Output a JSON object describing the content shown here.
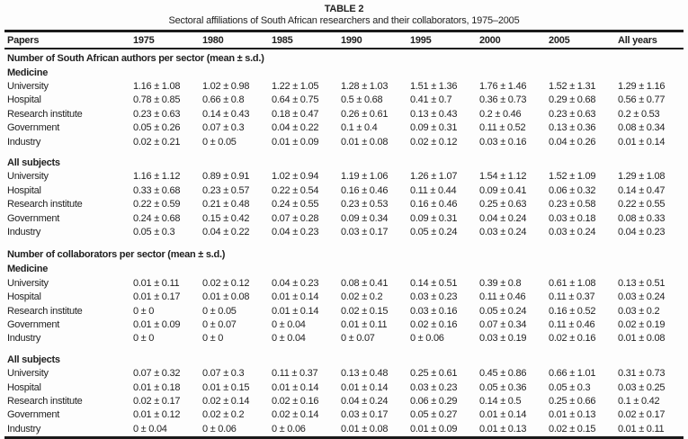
{
  "page": {
    "title": "TABLE 2",
    "subtitle": "Sectoral affiliations of South African researchers and their collaborators, 1975–2005"
  },
  "table": {
    "columns": [
      "Papers",
      "1975",
      "1980",
      "1985",
      "1990",
      "1995",
      "2000",
      "2005",
      "All years"
    ],
    "sections": [
      {
        "header": "Number of South African authors per sector (mean ± s.d.)",
        "groups": [
          {
            "name": "Medicine",
            "rows": [
              {
                "label": "University",
                "values": [
                  "1.16 ± 1.08",
                  "1.02 ± 0.98",
                  "1.22 ± 1.05",
                  "1.28 ± 1.03",
                  "1.51 ± 1.36",
                  "1.76 ± 1.46",
                  "1.52 ± 1.31",
                  "1.29 ± 1.16"
                ]
              },
              {
                "label": "Hospital",
                "values": [
                  "0.78 ± 0.85",
                  "0.66 ± 0.8",
                  "0.64 ± 0.75",
                  "0.5 ± 0.68",
                  "0.41 ± 0.7",
                  "0.36 ± 0.73",
                  "0.29 ± 0.68",
                  "0.56 ± 0.77"
                ]
              },
              {
                "label": "Research institute",
                "values": [
                  "0.23 ± 0.63",
                  "0.14 ± 0.43",
                  "0.18 ± 0.47",
                  "0.26 ± 0.61",
                  "0.13 ± 0.43",
                  "0.2 ± 0.46",
                  "0.23 ± 0.63",
                  "0.2 ± 0.53"
                ]
              },
              {
                "label": "Government",
                "values": [
                  "0.05 ± 0.26",
                  "0.07 ± 0.3",
                  "0.04 ± 0.22",
                  "0.1 ± 0.4",
                  "0.09 ± 0.31",
                  "0.11 ± 0.52",
                  "0.13 ± 0.36",
                  "0.08 ± 0.34"
                ]
              },
              {
                "label": "Industry",
                "values": [
                  "0.02 ± 0.21",
                  "0 ± 0.05",
                  "0.01 ± 0.09",
                  "0.01 ± 0.08",
                  "0.02 ± 0.12",
                  "0.03 ± 0.16",
                  "0.04 ± 0.26",
                  "0.01 ± 0.14"
                ]
              }
            ]
          },
          {
            "name": "All subjects",
            "rows": [
              {
                "label": "University",
                "values": [
                  "1.16 ± 1.12",
                  "0.89 ± 0.91",
                  "1.02 ± 0.94",
                  "1.19 ± 1.06",
                  "1.26 ± 1.07",
                  "1.54 ± 1.12",
                  "1.52 ± 1.09",
                  "1.29 ± 1.08"
                ]
              },
              {
                "label": "Hospital",
                "values": [
                  "0.33 ± 0.68",
                  "0.23 ± 0.57",
                  "0.22 ± 0.54",
                  "0.16 ± 0.46",
                  "0.11 ± 0.44",
                  "0.09 ± 0.41",
                  "0.06 ± 0.32",
                  "0.14 ± 0.47"
                ]
              },
              {
                "label": "Research institute",
                "values": [
                  "0.22 ± 0.59",
                  "0.21 ± 0.48",
                  "0.24 ± 0.55",
                  "0.23 ± 0.53",
                  "0.16 ± 0.46",
                  "0.25 ± 0.63",
                  "0.23 ± 0.58",
                  "0.22 ± 0.55"
                ]
              },
              {
                "label": "Government",
                "values": [
                  "0.24 ± 0.68",
                  "0.15 ± 0.42",
                  "0.07 ± 0.28",
                  "0.09 ± 0.34",
                  "0.09 ± 0.31",
                  "0.04 ± 0.24",
                  "0.03 ± 0.18",
                  "0.08 ± 0.33"
                ]
              },
              {
                "label": "Industry",
                "values": [
                  "0.05 ± 0.3",
                  "0.04 ± 0.22",
                  "0.04 ± 0.23",
                  "0.03 ± 0.17",
                  "0.05 ± 0.24",
                  "0.03 ± 0.24",
                  "0.03 ± 0.24",
                  "0.04 ± 0.23"
                ]
              }
            ]
          }
        ]
      },
      {
        "header": "Number of collaborators per sector (mean ± s.d.)",
        "groups": [
          {
            "name": "Medicine",
            "rows": [
              {
                "label": "University",
                "values": [
                  "0.01 ± 0.11",
                  "0.02 ± 0.12",
                  "0.04 ± 0.23",
                  "0.08 ± 0.41",
                  "0.14 ± 0.51",
                  "0.39 ± 0.8",
                  "0.61 ± 1.08",
                  "0.13 ± 0.51"
                ]
              },
              {
                "label": "Hospital",
                "values": [
                  "0.01 ± 0.17",
                  "0.01 ± 0.08",
                  "0.01 ± 0.14",
                  "0.02 ± 0.2",
                  "0.03 ± 0.23",
                  "0.11 ± 0.46",
                  "0.11 ± 0.37",
                  "0.03 ± 0.24"
                ]
              },
              {
                "label": "Research institute",
                "values": [
                  "0 ± 0",
                  "0 ± 0.05",
                  "0.01 ± 0.14",
                  "0.02 ± 0.15",
                  "0.03 ± 0.16",
                  "0.05 ± 0.24",
                  "0.16 ± 0.52",
                  "0.03 ± 0.2"
                ]
              },
              {
                "label": "Government",
                "values": [
                  "0.01 ± 0.09",
                  "0 ± 0.07",
                  "0 ± 0.04",
                  "0.01 ± 0.11",
                  "0.02 ± 0.16",
                  "0.07 ± 0.34",
                  "0.11 ± 0.46",
                  "0.02 ± 0.19"
                ]
              },
              {
                "label": "Industry",
                "values": [
                  "0 ± 0",
                  "0 ± 0",
                  "0 ± 0.04",
                  "0 ± 0.07",
                  "0 ± 0.06",
                  "0.03 ± 0.19",
                  "0.02 ± 0.16",
                  "0.01 ± 0.08"
                ]
              }
            ]
          },
          {
            "name": "All subjects",
            "rows": [
              {
                "label": "University",
                "values": [
                  "0.07 ± 0.32",
                  "0.07 ± 0.3",
                  "0.11 ± 0.37",
                  "0.13 ± 0.48",
                  "0.25 ± 0.61",
                  "0.45 ± 0.86",
                  "0.66 ± 1.01",
                  "0.31 ± 0.73"
                ]
              },
              {
                "label": "Hospital",
                "values": [
                  "0.01 ± 0.18",
                  "0.01 ± 0.15",
                  "0.01 ± 0.14",
                  "0.01 ± 0.14",
                  "0.03 ± 0.23",
                  "0.05 ± 0.36",
                  "0.05 ± 0.3",
                  "0.03 ± 0.25"
                ]
              },
              {
                "label": "Research institute",
                "values": [
                  "0.02 ± 0.17",
                  "0.02 ± 0.14",
                  "0.02 ± 0.16",
                  "0.04 ± 0.24",
                  "0.06 ± 0.29",
                  "0.14 ± 0.5",
                  "0.25 ± 0.66",
                  "0.1 ± 0.42"
                ]
              },
              {
                "label": "Government",
                "values": [
                  "0.01 ± 0.12",
                  "0.02 ± 0.2",
                  "0.02 ± 0.14",
                  "0.03 ± 0.17",
                  "0.05 ± 0.27",
                  "0.01 ± 0.14",
                  "0.01 ± 0.13",
                  "0.02 ± 0.17"
                ]
              },
              {
                "label": "Industry",
                "values": [
                  "0 ± 0.04",
                  "0 ± 0.06",
                  "0 ± 0.06",
                  "0.01 ± 0.08",
                  "0.01 ± 0.09",
                  "0.01 ± 0.13",
                  "0.02 ± 0.15",
                  "0.01 ± 0.11"
                ]
              }
            ]
          }
        ]
      }
    ]
  },
  "colors": {
    "text": "#1f1f1f",
    "rule": "#1a1a1a",
    "background": "#fdfdfd"
  }
}
